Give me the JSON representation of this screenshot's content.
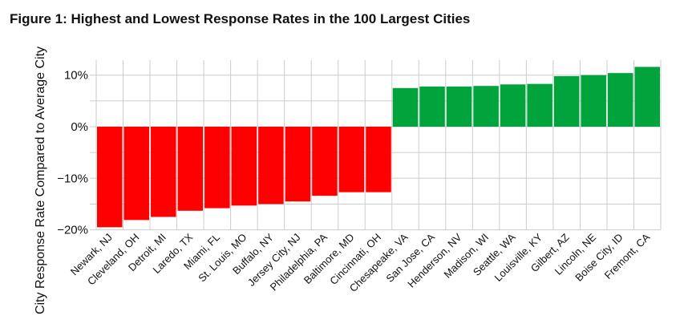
{
  "figure_title": "Figure 1: Highest and Lowest Response Rates in the 100 Largest Cities",
  "chart_data": {
    "type": "bar",
    "title": "Figure 1: Highest and Lowest Response Rates in the 100 Largest Cities",
    "xlabel": "",
    "ylabel": "City Response Rate Compared to Average City",
    "ylim": [
      -20,
      13
    ],
    "yticks": [
      -20,
      -10,
      0,
      10
    ],
    "ytick_labels": [
      "−20%",
      "−10%",
      "0%",
      "10%"
    ],
    "grid": true,
    "categories": [
      "Newark, NJ",
      "Cleveland, OH",
      "Detroit, MI",
      "Laredo, TX",
      "Miami, FL",
      "St. Louis, MO",
      "Buffalo, NY",
      "Jersey City, NJ",
      "Philadelphia, PA",
      "Baltimore, MD",
      "Cincinnati, OH",
      "Chesapeake, VA",
      "San Jose, CA",
      "Henderson, NV",
      "Madison, WI",
      "Seattle, WA",
      "Louisville, KY",
      "Gilbert, AZ",
      "Lincoln, NE",
      "Boise City, ID",
      "Fremont, CA"
    ],
    "values": [
      -19.5,
      -18.1,
      -17.5,
      -16.3,
      -15.8,
      -15.3,
      -15.0,
      -14.5,
      -13.4,
      -12.7,
      -12.7,
      7.5,
      7.8,
      7.8,
      7.9,
      8.2,
      8.3,
      9.8,
      10.0,
      10.4,
      11.6
    ],
    "colors": {
      "negative": "#ff0000",
      "positive": "#00a33c"
    }
  }
}
